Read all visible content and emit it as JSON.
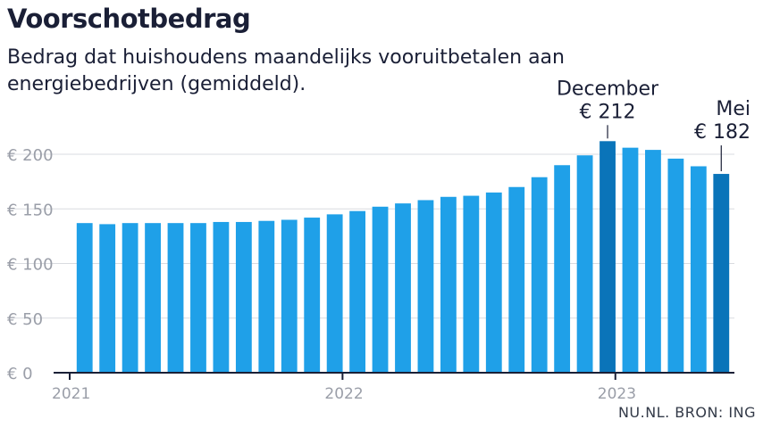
{
  "header": {
    "title": "Voorschotbedrag",
    "subtitle": "Bedrag dat huishoudens maandelijks vooruitbetalen aan energiebedrijven (gemiddeld)."
  },
  "source": "NU.NL. BRON: ING",
  "colors": {
    "bar": "#1fa0e8",
    "highlight": "#0a74b9",
    "grid": "#d9dbe0",
    "axis": "#1a1f36",
    "tick_text": "#9a9ea8"
  },
  "chart_data": {
    "type": "bar",
    "title": "Voorschotbedrag",
    "subtitle": "Bedrag dat huishoudens maandelijks vooruitbetalen aan energiebedrijven (gemiddeld).",
    "xlabel": "",
    "ylabel": "",
    "ylim": [
      0,
      200
    ],
    "yticks": [
      "€ 0",
      "€ 50",
      "€ 100",
      "€ 150",
      "€ 200"
    ],
    "ytick_values": [
      0,
      50,
      100,
      150,
      200
    ],
    "xtick_labels": [
      {
        "label": "2021",
        "index": 0
      },
      {
        "label": "2022",
        "index": 12
      },
      {
        "label": "2023",
        "index": 24
      }
    ],
    "categories": [
      "2021-01",
      "2021-02",
      "2021-03",
      "2021-04",
      "2021-05",
      "2021-06",
      "2021-07",
      "2021-08",
      "2021-09",
      "2021-10",
      "2021-11",
      "2021-12",
      "2022-01",
      "2022-02",
      "2022-03",
      "2022-04",
      "2022-05",
      "2022-06",
      "2022-07",
      "2022-08",
      "2022-09",
      "2022-10",
      "2022-11",
      "2022-12",
      "2023-01",
      "2023-02",
      "2023-03",
      "2023-04",
      "2023-05"
    ],
    "values": [
      137,
      136,
      137,
      137,
      137,
      137,
      138,
      138,
      139,
      140,
      142,
      145,
      148,
      152,
      155,
      158,
      161,
      162,
      165,
      170,
      179,
      190,
      199,
      212,
      206,
      204,
      196,
      189,
      182
    ],
    "highlight_indices": [
      23,
      28
    ],
    "annotations": [
      {
        "index": 23,
        "label": "December",
        "value_label": "€ 212"
      },
      {
        "index": 28,
        "label": "Mei",
        "value_label": "€ 182"
      }
    ],
    "grid": true,
    "legend": "none"
  }
}
